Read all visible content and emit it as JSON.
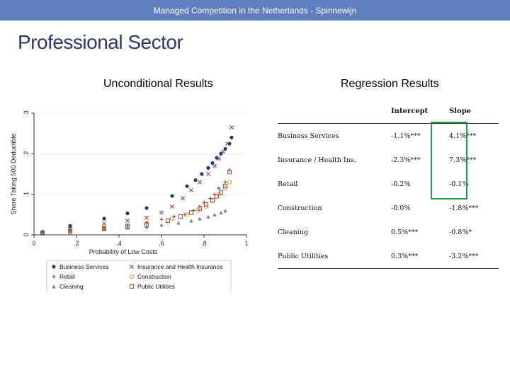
{
  "header": {
    "subtitle": "Managed Competition in the Netherlands - Spinnewijn"
  },
  "slide": {
    "title": "Professional Sector",
    "left_heading": "Unconditional Results",
    "right_heading": "Regression Results"
  },
  "regression": {
    "columns": [
      "",
      "Intercept",
      "Slope"
    ],
    "rows": [
      {
        "label": "Business Services",
        "intercept": "-1.1%***",
        "slope": "4.1%***"
      },
      {
        "label": "Insurance / Health Ins.",
        "intercept": "-2.3%***",
        "slope": "7.3%***"
      },
      {
        "label": "Retail",
        "intercept": "-0.2%",
        "slope": "-0.1%"
      },
      {
        "label": "Construction",
        "intercept": "-0.0%",
        "slope": "-1.8%***"
      },
      {
        "label": "Cleaning",
        "intercept": "0.5%***",
        "slope": "-0.8%*"
      },
      {
        "label": "Public Utilities",
        "intercept": "0.3%***",
        "slope": "-3.2%***"
      }
    ],
    "highlight_color": "#22a045"
  },
  "chart_data": {
    "type": "scatter",
    "xlabel": "Probability of Low Costs",
    "ylabel": "Share Taking 500 Deductible",
    "xlim": [
      0,
      1
    ],
    "ylim": [
      0,
      0.3
    ],
    "xticks": [
      "0",
      ".2",
      ".4",
      ".6",
      ".8",
      "1"
    ],
    "yticks": [
      "0",
      ".1",
      ".2",
      ".3"
    ],
    "legend": "bottom",
    "series": [
      {
        "name": "Business Services",
        "marker": "circle",
        "color": "#1f3c7a",
        "points": [
          [
            0.04,
            0.008
          ],
          [
            0.17,
            0.022
          ],
          [
            0.33,
            0.04
          ],
          [
            0.44,
            0.053
          ],
          [
            0.53,
            0.066
          ],
          [
            0.65,
            0.096
          ],
          [
            0.72,
            0.12
          ],
          [
            0.76,
            0.135
          ],
          [
            0.79,
            0.15
          ],
          [
            0.82,
            0.165
          ],
          [
            0.84,
            0.177
          ],
          [
            0.86,
            0.19
          ],
          [
            0.88,
            0.2
          ],
          [
            0.9,
            0.212
          ],
          [
            0.92,
            0.225
          ],
          [
            0.93,
            0.24
          ]
        ]
      },
      {
        "name": "Insurance and Health Insurance",
        "marker": "x",
        "color": "#9c3d55",
        "points": [
          [
            0.04,
            0.006
          ],
          [
            0.17,
            0.015
          ],
          [
            0.33,
            0.028
          ],
          [
            0.44,
            0.035
          ],
          [
            0.53,
            0.042
          ],
          [
            0.6,
            0.055
          ],
          [
            0.65,
            0.07
          ],
          [
            0.7,
            0.09
          ],
          [
            0.74,
            0.11
          ],
          [
            0.78,
            0.13
          ],
          [
            0.82,
            0.15
          ],
          [
            0.85,
            0.17
          ],
          [
            0.87,
            0.188
          ],
          [
            0.89,
            0.205
          ],
          [
            0.91,
            0.225
          ],
          [
            0.93,
            0.265
          ]
        ]
      },
      {
        "name": "Retail",
        "marker": "plus",
        "color": "#356a28",
        "points": [
          [
            0.04,
            0.006
          ],
          [
            0.17,
            0.01
          ],
          [
            0.33,
            0.018
          ],
          [
            0.44,
            0.022
          ],
          [
            0.53,
            0.03
          ],
          [
            0.6,
            0.038
          ],
          [
            0.66,
            0.045
          ],
          [
            0.71,
            0.05
          ],
          [
            0.75,
            0.06
          ],
          [
            0.78,
            0.07
          ],
          [
            0.8,
            0.08
          ],
          [
            0.83,
            0.09
          ],
          [
            0.85,
            0.1
          ],
          [
            0.87,
            0.115
          ],
          [
            0.9,
            0.13
          ],
          [
            0.92,
            0.16
          ]
        ]
      },
      {
        "name": "Construction",
        "marker": "circle-open",
        "color": "#c8a030",
        "points": [
          [
            0.04,
            0.006
          ],
          [
            0.17,
            0.012
          ],
          [
            0.33,
            0.02
          ],
          [
            0.44,
            0.025
          ],
          [
            0.53,
            0.03
          ],
          [
            0.65,
            0.04
          ],
          [
            0.72,
            0.05
          ],
          [
            0.77,
            0.06
          ],
          [
            0.81,
            0.07
          ],
          [
            0.84,
            0.085
          ],
          [
            0.87,
            0.1
          ],
          [
            0.9,
            0.115
          ],
          [
            0.92,
            0.13
          ]
        ]
      },
      {
        "name": "Cleaning",
        "marker": "triangle",
        "color": "#5f8a8a",
        "points": [
          [
            0.04,
            0.005
          ],
          [
            0.17,
            0.01
          ],
          [
            0.33,
            0.015
          ],
          [
            0.44,
            0.018
          ],
          [
            0.53,
            0.02
          ],
          [
            0.6,
            0.025
          ],
          [
            0.68,
            0.03
          ],
          [
            0.74,
            0.035
          ],
          [
            0.78,
            0.04
          ],
          [
            0.82,
            0.045
          ],
          [
            0.85,
            0.05
          ],
          [
            0.88,
            0.055
          ],
          [
            0.9,
            0.06
          ]
        ]
      },
      {
        "name": "Public Utilities",
        "marker": "square-open",
        "color": "#b03a3a",
        "points": [
          [
            0.04,
            0.004
          ],
          [
            0.17,
            0.008
          ],
          [
            0.33,
            0.015
          ],
          [
            0.44,
            0.02
          ],
          [
            0.53,
            0.025
          ],
          [
            0.63,
            0.035
          ],
          [
            0.69,
            0.045
          ],
          [
            0.74,
            0.055
          ],
          [
            0.78,
            0.065
          ],
          [
            0.81,
            0.075
          ],
          [
            0.84,
            0.085
          ],
          [
            0.86,
            0.095
          ],
          [
            0.88,
            0.105
          ],
          [
            0.9,
            0.12
          ],
          [
            0.92,
            0.155
          ]
        ]
      }
    ]
  }
}
